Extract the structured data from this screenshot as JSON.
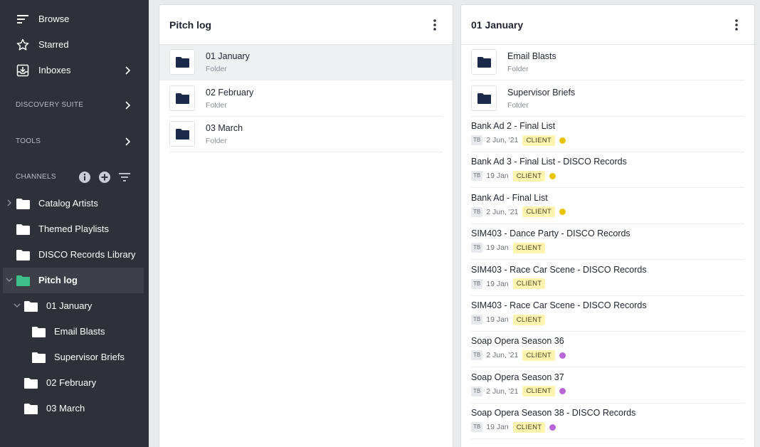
{
  "sidebar": {
    "nav": [
      {
        "label": "Browse",
        "icon": "list-icon"
      },
      {
        "label": "Starred",
        "icon": "star-icon"
      },
      {
        "label": "Inboxes",
        "icon": "inbox-icon"
      }
    ],
    "sections": {
      "discovery": "DISCOVERY SUITE",
      "tools": "TOOLS",
      "channels": "CHANNELS"
    },
    "channels": [
      {
        "label": "Catalog Artists"
      },
      {
        "label": "Themed Playlists"
      },
      {
        "label": "DISCO Records Library"
      },
      {
        "label": "Pitch log"
      },
      {
        "label": "01 January"
      },
      {
        "label": "Email Blasts"
      },
      {
        "label": "Supervisor Briefs"
      },
      {
        "label": "02 February"
      },
      {
        "label": "03 March"
      }
    ]
  },
  "left_panel": {
    "title": "Pitch log",
    "rows": [
      {
        "title": "01 January",
        "sub": "Folder"
      },
      {
        "title": "02 February",
        "sub": "Folder"
      },
      {
        "title": "03 March",
        "sub": "Folder"
      }
    ]
  },
  "right_panel": {
    "title": "01 January",
    "folders": [
      {
        "title": "Email Blasts",
        "sub": "Folder"
      },
      {
        "title": "Supervisor Briefs",
        "sub": "Folder"
      }
    ],
    "items": [
      {
        "title": "Bank Ad 2 - Final List",
        "initials": "TB",
        "date": "2 Jun, '21",
        "tag": "CLIENT",
        "dot": "#e8c400"
      },
      {
        "title": "Bank Ad 3 - Final List - DISCO Records",
        "initials": "TB",
        "date": "19 Jan",
        "tag": "CLIENT",
        "dot": "#e8c400"
      },
      {
        "title": "Bank Ad - Final List",
        "initials": "TB",
        "date": "2 Jun, '21",
        "tag": "CLIENT",
        "dot": "#e8c400"
      },
      {
        "title": "SIM403 - Dance Party - DISCO Records",
        "initials": "TB",
        "date": "19 Jan",
        "tag": "CLIENT",
        "dot": ""
      },
      {
        "title": "SIM403 - Race Car Scene - DISCO Records",
        "initials": "TB",
        "date": "19 Jan",
        "tag": "CLIENT",
        "dot": ""
      },
      {
        "title": "SIM403 - Race Car Scene - DISCO Records",
        "initials": "TB",
        "date": "19 Jan",
        "tag": "CLIENT",
        "dot": ""
      },
      {
        "title": "Soap Opera Season 36",
        "initials": "TB",
        "date": "2 Jun, '21",
        "tag": "CLIENT",
        "dot": "#b866d6"
      },
      {
        "title": "Soap Opera Season 37",
        "initials": "TB",
        "date": "2 Jun, '21",
        "tag": "CLIENT",
        "dot": "#b866d6"
      },
      {
        "title": "Soap Opera Season 38 - DISCO Records",
        "initials": "TB",
        "date": "19 Jan",
        "tag": "CLIENT",
        "dot": "#b866d6"
      }
    ]
  },
  "colors": {
    "sidebar_bg": "#2e3138",
    "folder_green": "#3fbf8a",
    "folder_dark": "#1b2a4a",
    "client_tag": "#fff3b0"
  }
}
